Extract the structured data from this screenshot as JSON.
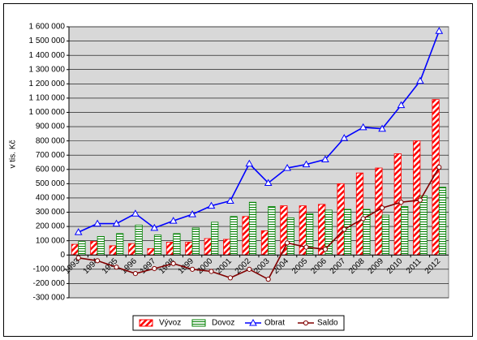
{
  "chart_data": {
    "type": "combo",
    "y_label": "v tis. Kč",
    "categories": [
      "1993",
      "1994",
      "1995",
      "1996",
      "1997",
      "1998",
      "1999",
      "2000",
      "2001",
      "2002",
      "2003",
      "2004",
      "2005",
      "2006",
      "2007",
      "2008",
      "2009",
      "2010",
      "2011",
      "2012"
    ],
    "series": [
      {
        "name": "Vývoz",
        "type": "bar",
        "color": "#ff0000",
        "values": [
          75000,
          95000,
          65000,
          80000,
          45000,
          90000,
          90000,
          115000,
          110000,
          270000,
          170000,
          345000,
          345000,
          355000,
          500000,
          575000,
          610000,
          710000,
          800000,
          1090000
        ]
      },
      {
        "name": "Dovoz",
        "type": "bar",
        "color": "#008000",
        "values": [
          95000,
          130000,
          150000,
          210000,
          140000,
          150000,
          190000,
          230000,
          270000,
          370000,
          340000,
          260000,
          290000,
          315000,
          320000,
          320000,
          280000,
          340000,
          415000,
          475000
        ]
      },
      {
        "name": "Obrat",
        "type": "line",
        "marker": "triangle",
        "color": "#0000ff",
        "values": [
          160000,
          220000,
          220000,
          290000,
          190000,
          240000,
          285000,
          345000,
          380000,
          640000,
          505000,
          610000,
          635000,
          670000,
          820000,
          895000,
          885000,
          1050000,
          1220000,
          1570000
        ]
      },
      {
        "name": "Saldo",
        "type": "line",
        "marker": "circle",
        "color": "#800000",
        "values": [
          -20000,
          -40000,
          -85000,
          -130000,
          -95000,
          -60000,
          -100000,
          -115000,
          -160000,
          -100000,
          -170000,
          85000,
          55000,
          40000,
          180000,
          255000,
          330000,
          370000,
          385000,
          615000
        ]
      }
    ],
    "ylim": [
      -300000,
      1600000
    ],
    "yticks": [
      {
        "value": -300000,
        "label": "-300 000"
      },
      {
        "value": -200000,
        "label": "-200 000"
      },
      {
        "value": -100000,
        "label": "-100 000"
      },
      0,
      {
        "value": 100000,
        "label": "100 000"
      },
      {
        "value": 200000,
        "label": "200 000"
      },
      {
        "value": 300000,
        "label": "300 000"
      },
      {
        "value": 400000,
        "label": "400 000"
      },
      {
        "value": 500000,
        "label": "500 000"
      },
      {
        "value": 600000,
        "label": "600 000"
      },
      {
        "value": 700000,
        "label": "700 000"
      },
      {
        "value": 800000,
        "label": "800 000"
      },
      {
        "value": 900000,
        "label": "900 000"
      },
      {
        "value": 1000000,
        "label": "1 000 000"
      },
      {
        "value": 1100000,
        "label": "1 100 000"
      },
      {
        "value": 1200000,
        "label": "1 200 000"
      },
      {
        "value": 1300000,
        "label": "1 300 000"
      },
      {
        "value": 1400000,
        "label": "1 400 000"
      },
      {
        "value": 1500000,
        "label": "1 500 000"
      },
      {
        "value": 1600000,
        "label": "1 600 000"
      }
    ],
    "grid": true,
    "legend": "bottom"
  }
}
